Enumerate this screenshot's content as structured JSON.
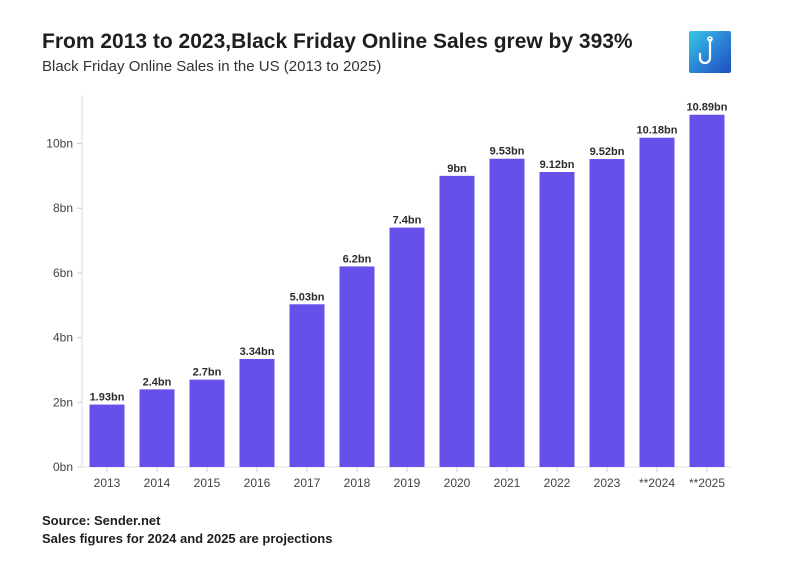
{
  "header": {
    "title": "From 2013 to 2023,Black Friday Online Sales grew by 393%",
    "subtitle": "Black Friday Online Sales in the US (2013 to 2025)"
  },
  "logo": {
    "icon": "hook-icon",
    "color": "#2a7fd4"
  },
  "footer": {
    "source": "Source: Sender.net",
    "note": "Sales figures for 2024 and 2025 are projections"
  },
  "chart_data": {
    "type": "bar",
    "title": "From 2013 to 2023,Black Friday Online Sales grew by 393%",
    "subtitle": "Black Friday Online Sales in the US (2013 to 2025)",
    "xlabel": "",
    "ylabel": "",
    "categories": [
      "2013",
      "2014",
      "2015",
      "2016",
      "2017",
      "2018",
      "2019",
      "2020",
      "2021",
      "2022",
      "2023",
      "**2024",
      "**2025"
    ],
    "values": [
      1.93,
      2.4,
      2.7,
      3.34,
      5.03,
      6.2,
      7.4,
      9,
      9.53,
      9.12,
      9.52,
      10.18,
      10.89
    ],
    "data_labels": [
      "1.93bn",
      "2.4bn",
      "2.7bn",
      "3.34bn",
      "5.03bn",
      "6.2bn",
      "7.4bn",
      "9bn",
      "9.53bn",
      "9.12bn",
      "9.52bn",
      "10.18bn",
      "10.89bn"
    ],
    "y_ticks": [
      0,
      2,
      4,
      6,
      8,
      10
    ],
    "y_tick_labels": [
      "0bn",
      "2bn",
      "4bn",
      "6bn",
      "8bn",
      "10bn"
    ],
    "ylim": [
      0,
      11.5
    ],
    "bar_color": "#6550ea",
    "grid": false,
    "legend": "none"
  }
}
